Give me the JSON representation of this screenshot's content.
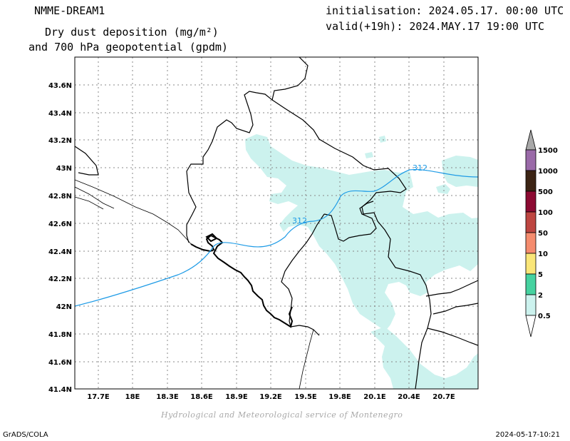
{
  "header": {
    "model": "NMME-DREAM1",
    "title_line1": "Dry dust deposition (mg/m²)",
    "title_line2": "and 700 hPa geopotential (gpdm)",
    "init": "initialisation: 2024.05.17. 00:00 UTC",
    "valid": "valid(+19h): 2024.MAY.17 19:00 UTC"
  },
  "map": {
    "lat_ticks": [
      "43.6N",
      "43.4N",
      "43.2N",
      "43N",
      "42.8N",
      "42.6N",
      "42.4N",
      "42.2N",
      "42N",
      "41.8N",
      "41.6N",
      "41.4N"
    ],
    "lon_ticks": [
      "17.7E",
      "18E",
      "18.3E",
      "18.6E",
      "18.9E",
      "19.2E",
      "19.5E",
      "19.8E",
      "20.1E",
      "20.4E",
      "20.7E"
    ],
    "contour_label": "312",
    "contour_color": "#1e9be6",
    "dust_color": "#ccf2ee"
  },
  "colorbar": {
    "labels": [
      "1500",
      "1000",
      "500",
      "100",
      "50",
      "10",
      "5",
      "2",
      "0.5"
    ],
    "colors": [
      "#a8a8a8",
      "#9a6aa8",
      "#3c2414",
      "#8c0a32",
      "#be4641",
      "#f58c6e",
      "#fae678",
      "#46d2a0",
      "#ccf2ee"
    ]
  },
  "footer": {
    "left": "GrADS/COLA",
    "credit": "Hydrological and Meteorological service of Montenegro",
    "timestamp": "2024-05-17-10:21"
  }
}
